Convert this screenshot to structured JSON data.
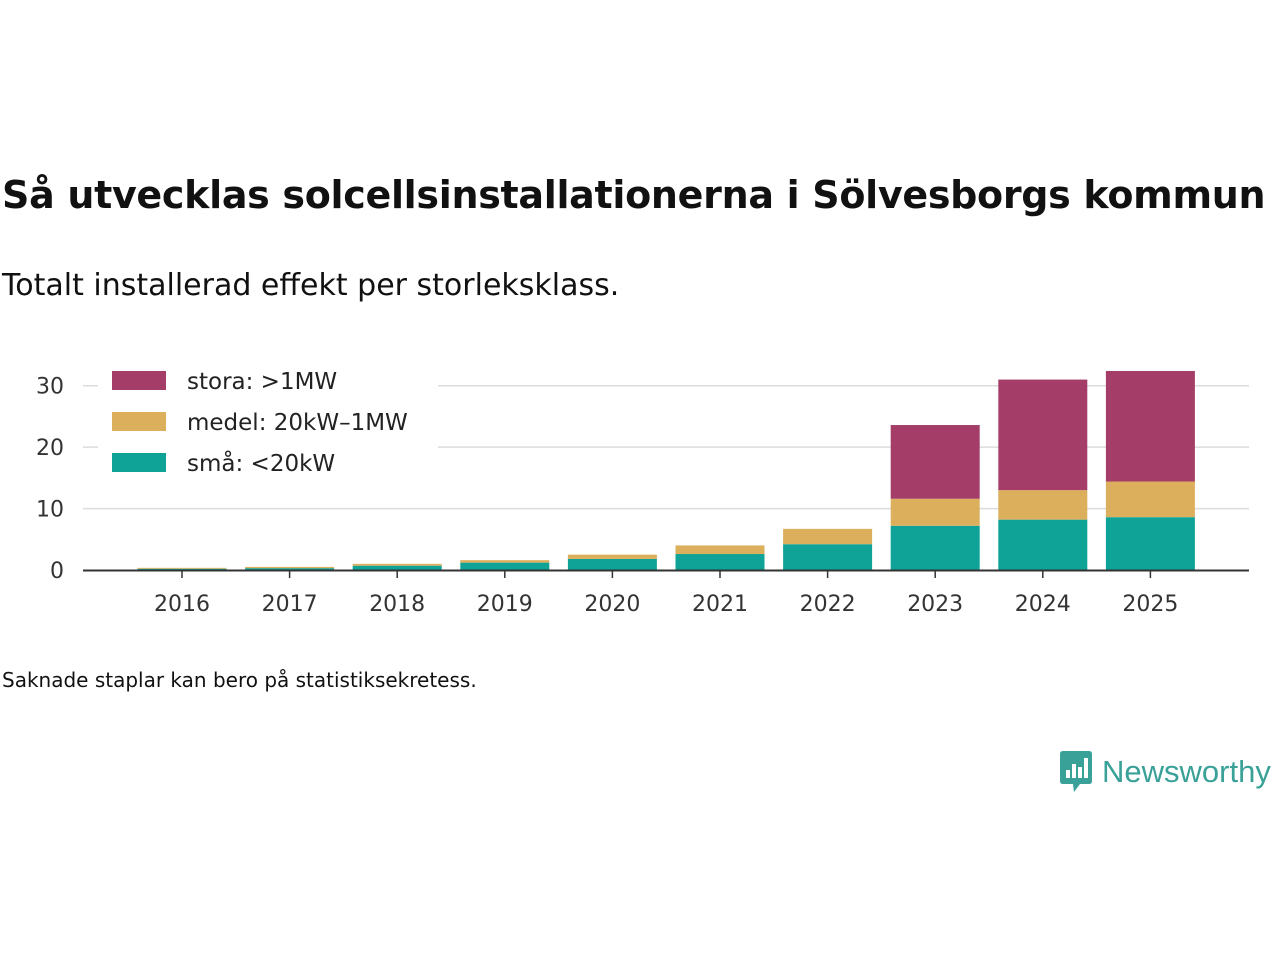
{
  "header": {
    "title": "Så utvecklas solcellsinstallationerna i Sölvesborgs kommun",
    "subtitle": "Totalt installerad effekt per storleksklass."
  },
  "footer": {
    "note": "Saknade staplar kan bero på statistiksekretess.",
    "brand": "Newsworthy"
  },
  "chart_data": {
    "type": "bar",
    "stacked": true,
    "title": "Så utvecklas solcellsinstallationerna i Sölvesborgs kommun",
    "subtitle": "Totalt installerad effekt per storleksklass.",
    "xlabel": "",
    "ylabel": "",
    "ylim": [
      0,
      35
    ],
    "yticks": [
      0,
      10,
      20,
      30
    ],
    "grid": true,
    "legend_position": "top-left",
    "categories": [
      "2016",
      "2017",
      "2018",
      "2019",
      "2020",
      "2021",
      "2022",
      "2023",
      "2024",
      "2025"
    ],
    "series": [
      {
        "name": "små: <20kW",
        "color": "#0fa398",
        "values": [
          0.2,
          0.3,
          0.7,
          1.2,
          1.8,
          2.6,
          4.2,
          7.2,
          8.2,
          8.6
        ]
      },
      {
        "name": "medel: 20kW–1MW",
        "color": "#dcaf5d",
        "values": [
          0.15,
          0.2,
          0.3,
          0.4,
          0.7,
          1.4,
          2.5,
          4.4,
          4.8,
          5.8
        ]
      },
      {
        "name": "stora: >1MW",
        "color": "#a43e68",
        "values": [
          0,
          0,
          0,
          0,
          0,
          0,
          0,
          12.0,
          18.0,
          18.0
        ]
      }
    ]
  }
}
